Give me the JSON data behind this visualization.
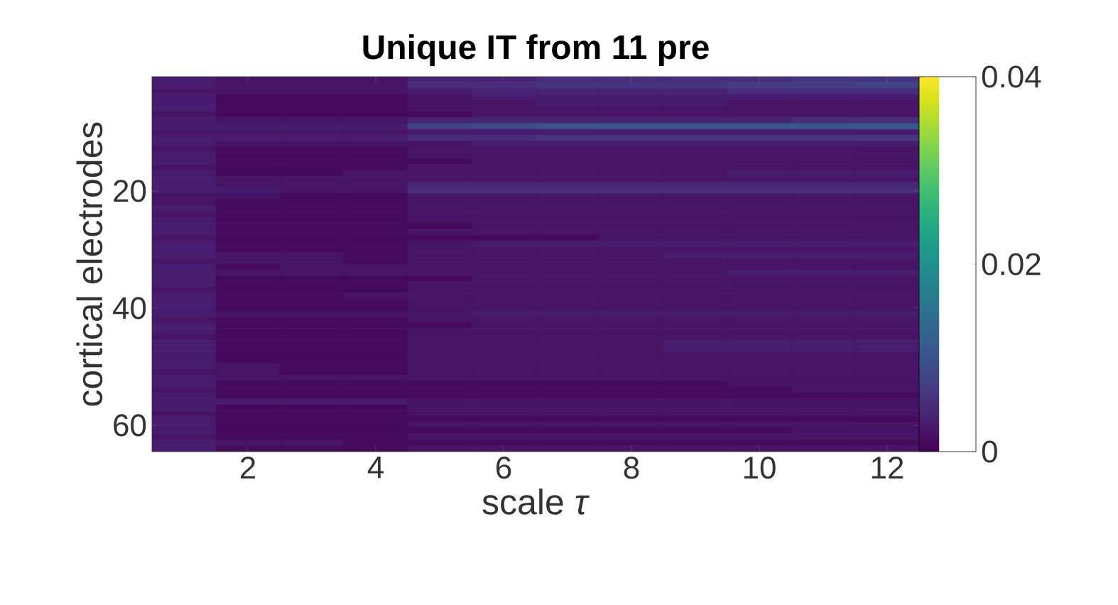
{
  "chart_data": {
    "type": "heatmap",
    "title": "Unique IT from 11 pre",
    "xlabel": "scale *τ*",
    "ylabel": "cortical electrodes",
    "categories": [
      null,
      "2",
      null,
      "4",
      null,
      "6",
      null,
      "8",
      null,
      "10",
      null,
      "12"
    ],
    "y_categories": [
      null,
      null,
      null,
      null,
      null,
      null,
      null,
      null,
      null,
      null,
      null,
      null,
      null,
      null,
      null,
      null,
      null,
      null,
      null,
      "20",
      null,
      null,
      null,
      null,
      null,
      null,
      null,
      null,
      null,
      null,
      null,
      null,
      null,
      null,
      null,
      null,
      null,
      null,
      null,
      "40",
      null,
      null,
      null,
      null,
      null,
      null,
      null,
      null,
      null,
      null,
      null,
      null,
      null,
      null,
      null,
      null,
      null,
      null,
      null,
      "60",
      null,
      null,
      null,
      null
    ],
    "cells": [
      [
        0.003,
        0.002,
        0.002,
        0.002,
        0.004,
        0.004,
        0.005,
        0.005,
        0.005,
        0.005,
        0.006,
        0.006
      ],
      [
        0.003,
        0.002,
        0.002,
        0.002,
        0.005,
        0.005,
        0.006,
        0.006,
        0.006,
        0.007,
        0.007,
        0.008
      ],
      [
        0.002,
        0.002,
        0.002,
        0.002,
        0.003,
        0.004,
        0.004,
        0.004,
        0.004,
        0.005,
        0.005,
        0.005
      ],
      [
        0.003,
        0.001,
        0.001,
        0.001,
        0.002,
        0.003,
        0.003,
        0.003,
        0.003,
        0.003,
        0.003,
        0.003
      ],
      [
        0.003,
        0.001,
        0.001,
        0.001,
        0.002,
        0.002,
        0.003,
        0.003,
        0.003,
        0.002,
        0.002,
        0.002
      ],
      [
        0.003,
        0.001,
        0.001,
        0.001,
        0.002,
        0.002,
        0.002,
        0.002,
        0.002,
        0.002,
        0.002,
        0.002
      ],
      [
        0.002,
        0.001,
        0.001,
        0.001,
        0.001,
        0.002,
        0.002,
        0.002,
        0.002,
        0.002,
        0.002,
        0.002
      ],
      [
        0.003,
        0.002,
        0.002,
        0.002,
        0.004,
        0.004,
        0.004,
        0.004,
        0.004,
        0.004,
        0.005,
        0.005
      ],
      [
        0.003,
        0.003,
        0.003,
        0.003,
        0.008,
        0.009,
        0.01,
        0.011,
        0.011,
        0.011,
        0.011,
        0.011
      ],
      [
        0.002,
        0.002,
        0.002,
        0.002,
        0.003,
        0.003,
        0.003,
        0.003,
        0.003,
        0.003,
        0.003,
        0.003
      ],
      [
        0.003,
        0.003,
        0.003,
        0.003,
        0.005,
        0.005,
        0.006,
        0.006,
        0.006,
        0.006,
        0.006,
        0.006
      ],
      [
        0.003,
        0.002,
        0.002,
        0.002,
        0.002,
        0.003,
        0.003,
        0.003,
        0.003,
        0.003,
        0.003,
        0.003
      ],
      [
        0.002,
        0.001,
        0.001,
        0.001,
        0.002,
        0.002,
        0.002,
        0.002,
        0.002,
        0.002,
        0.002,
        0.002
      ],
      [
        0.003,
        0.001,
        0.001,
        0.001,
        0.002,
        0.002,
        0.002,
        0.002,
        0.002,
        0.002,
        0.002,
        0.002
      ],
      [
        0.003,
        0.001,
        0.001,
        0.001,
        0.001,
        0.002,
        0.002,
        0.002,
        0.002,
        0.002,
        0.002,
        0.002
      ],
      [
        0.002,
        0.001,
        0.001,
        0.001,
        0.002,
        0.002,
        0.002,
        0.002,
        0.002,
        0.002,
        0.002,
        0.002
      ],
      [
        0.003,
        0.001,
        0.001,
        0.002,
        0.002,
        0.002,
        0.002,
        0.002,
        0.002,
        0.003,
        0.003,
        0.003
      ],
      [
        0.003,
        0.002,
        0.002,
        0.002,
        0.002,
        0.002,
        0.002,
        0.002,
        0.002,
        0.002,
        0.002,
        0.002
      ],
      [
        0.003,
        0.002,
        0.002,
        0.002,
        0.004,
        0.004,
        0.004,
        0.004,
        0.004,
        0.004,
        0.004,
        0.004
      ],
      [
        0.003,
        0.003,
        0.002,
        0.002,
        0.005,
        0.005,
        0.005,
        0.005,
        0.005,
        0.005,
        0.005,
        0.005
      ],
      [
        0.002,
        0.002,
        0.001,
        0.001,
        0.002,
        0.002,
        0.002,
        0.002,
        0.002,
        0.002,
        0.002,
        0.002
      ],
      [
        0.002,
        0.001,
        0.001,
        0.001,
        0.002,
        0.002,
        0.002,
        0.002,
        0.002,
        0.002,
        0.002,
        0.002
      ],
      [
        0.003,
        0.001,
        0.001,
        0.001,
        0.002,
        0.002,
        0.002,
        0.002,
        0.002,
        0.002,
        0.002,
        0.002
      ],
      [
        0.002,
        0.001,
        0.001,
        0.001,
        0.002,
        0.002,
        0.002,
        0.002,
        0.002,
        0.002,
        0.002,
        0.002
      ],
      [
        0.003,
        0.001,
        0.001,
        0.001,
        0.002,
        0.002,
        0.002,
        0.002,
        0.002,
        0.002,
        0.002,
        0.002
      ],
      [
        0.003,
        0.001,
        0.001,
        0.001,
        0.001,
        0.002,
        0.002,
        0.002,
        0.002,
        0.002,
        0.002,
        0.002
      ],
      [
        0.003,
        0.001,
        0.001,
        0.001,
        0.002,
        0.002,
        0.002,
        0.002,
        0.002,
        0.002,
        0.002,
        0.002
      ],
      [
        0.002,
        0.001,
        0.001,
        0.001,
        0.001,
        0.001,
        0.001,
        0.002,
        0.002,
        0.002,
        0.002,
        0.002
      ],
      [
        0.003,
        0.001,
        0.001,
        0.001,
        0.002,
        0.003,
        0.003,
        0.003,
        0.003,
        0.003,
        0.003,
        0.003
      ],
      [
        0.003,
        0.001,
        0.001,
        0.001,
        0.002,
        0.002,
        0.002,
        0.002,
        0.002,
        0.002,
        0.002,
        0.002
      ],
      [
        0.003,
        0.002,
        0.002,
        0.001,
        0.002,
        0.002,
        0.002,
        0.002,
        0.003,
        0.003,
        0.003,
        0.003
      ],
      [
        0.002,
        0.002,
        0.002,
        0.001,
        0.002,
        0.002,
        0.002,
        0.002,
        0.002,
        0.002,
        0.002,
        0.002
      ],
      [
        0.003,
        0.001,
        0.002,
        0.002,
        0.002,
        0.002,
        0.002,
        0.002,
        0.002,
        0.002,
        0.002,
        0.002
      ],
      [
        0.003,
        0.002,
        0.002,
        0.002,
        0.002,
        0.002,
        0.002,
        0.002,
        0.002,
        0.003,
        0.003,
        0.003
      ],
      [
        0.003,
        0.001,
        0.001,
        0.001,
        0.001,
        0.002,
        0.002,
        0.002,
        0.002,
        0.002,
        0.002,
        0.002
      ],
      [
        0.003,
        0.001,
        0.001,
        0.001,
        0.002,
        0.002,
        0.002,
        0.002,
        0.002,
        0.002,
        0.002,
        0.002
      ],
      [
        0.002,
        0.001,
        0.001,
        0.001,
        0.002,
        0.002,
        0.002,
        0.002,
        0.002,
        0.002,
        0.002,
        0.002
      ],
      [
        0.003,
        0.001,
        0.001,
        0.002,
        0.002,
        0.002,
        0.002,
        0.002,
        0.002,
        0.002,
        0.002,
        0.002
      ],
      [
        0.003,
        0.001,
        0.001,
        0.001,
        0.002,
        0.002,
        0.002,
        0.002,
        0.002,
        0.002,
        0.002,
        0.002
      ],
      [
        0.003,
        0.001,
        0.001,
        0.001,
        0.002,
        0.002,
        0.002,
        0.002,
        0.002,
        0.002,
        0.002,
        0.002
      ],
      [
        0.003,
        0.002,
        0.002,
        0.002,
        0.002,
        0.003,
        0.003,
        0.003,
        0.003,
        0.003,
        0.003,
        0.003
      ],
      [
        0.002,
        0.001,
        0.001,
        0.001,
        0.002,
        0.002,
        0.002,
        0.002,
        0.002,
        0.002,
        0.002,
        0.002
      ],
      [
        0.003,
        0.001,
        0.001,
        0.001,
        0.001,
        0.002,
        0.002,
        0.002,
        0.002,
        0.002,
        0.002,
        0.002
      ],
      [
        0.003,
        0.001,
        0.001,
        0.001,
        0.002,
        0.002,
        0.002,
        0.002,
        0.002,
        0.002,
        0.002,
        0.002
      ],
      [
        0.002,
        0.001,
        0.001,
        0.001,
        0.002,
        0.002,
        0.002,
        0.002,
        0.002,
        0.002,
        0.002,
        0.002
      ],
      [
        0.003,
        0.001,
        0.001,
        0.001,
        0.002,
        0.002,
        0.002,
        0.002,
        0.003,
        0.003,
        0.003,
        0.003
      ],
      [
        0.003,
        0.001,
        0.001,
        0.001,
        0.002,
        0.002,
        0.002,
        0.002,
        0.003,
        0.003,
        0.003,
        0.003
      ],
      [
        0.003,
        0.001,
        0.001,
        0.001,
        0.002,
        0.002,
        0.002,
        0.002,
        0.002,
        0.002,
        0.002,
        0.002
      ],
      [
        0.003,
        0.001,
        0.001,
        0.001,
        0.002,
        0.002,
        0.002,
        0.002,
        0.002,
        0.002,
        0.002,
        0.002
      ],
      [
        0.003,
        0.002,
        0.001,
        0.001,
        0.002,
        0.002,
        0.002,
        0.002,
        0.002,
        0.002,
        0.002,
        0.002
      ],
      [
        0.002,
        0.002,
        0.001,
        0.001,
        0.002,
        0.002,
        0.002,
        0.002,
        0.002,
        0.002,
        0.002,
        0.002
      ],
      [
        0.003,
        0.002,
        0.002,
        0.002,
        0.002,
        0.002,
        0.002,
        0.002,
        0.002,
        0.002,
        0.002,
        0.002
      ],
      [
        0.003,
        0.001,
        0.001,
        0.001,
        0.001,
        0.001,
        0.001,
        0.001,
        0.001,
        0.002,
        0.002,
        0.002
      ],
      [
        0.002,
        0.001,
        0.001,
        0.001,
        0.001,
        0.001,
        0.001,
        0.001,
        0.001,
        0.001,
        0.002,
        0.002
      ],
      [
        0.003,
        0.001,
        0.001,
        0.001,
        0.001,
        0.001,
        0.001,
        0.001,
        0.001,
        0.001,
        0.001,
        0.001
      ],
      [
        0.003,
        0.003,
        0.003,
        0.003,
        0.002,
        0.002,
        0.002,
        0.002,
        0.002,
        0.002,
        0.002,
        0.002
      ],
      [
        0.003,
        0.001,
        0.001,
        0.001,
        0.002,
        0.002,
        0.002,
        0.002,
        0.002,
        0.002,
        0.002,
        0.002
      ],
      [
        0.002,
        0.001,
        0.001,
        0.001,
        0.002,
        0.002,
        0.002,
        0.002,
        0.002,
        0.002,
        0.002,
        0.002
      ],
      [
        0.003,
        0.001,
        0.001,
        0.001,
        0.001,
        0.001,
        0.001,
        0.001,
        0.001,
        0.001,
        0.001,
        0.001
      ],
      [
        0.003,
        0.001,
        0.001,
        0.001,
        0.002,
        0.002,
        0.002,
        0.002,
        0.002,
        0.002,
        0.002,
        0.002
      ],
      [
        0.003,
        0.001,
        0.001,
        0.001,
        0.001,
        0.001,
        0.001,
        0.001,
        0.001,
        0.001,
        0.002,
        0.002
      ],
      [
        0.002,
        0.001,
        0.001,
        0.001,
        0.002,
        0.002,
        0.002,
        0.002,
        0.002,
        0.002,
        0.002,
        0.002
      ],
      [
        0.003,
        0.002,
        0.002,
        0.001,
        0.001,
        0.001,
        0.001,
        0.001,
        0.001,
        0.001,
        0.001,
        0.001
      ],
      [
        0.003,
        0.001,
        0.001,
        0.001,
        0.002,
        0.002,
        0.002,
        0.002,
        0.002,
        0.002,
        0.002,
        0.002
      ]
    ],
    "clim": [
      0,
      0.04
    ],
    "cticks": [
      0,
      0.02,
      0.04
    ]
  }
}
